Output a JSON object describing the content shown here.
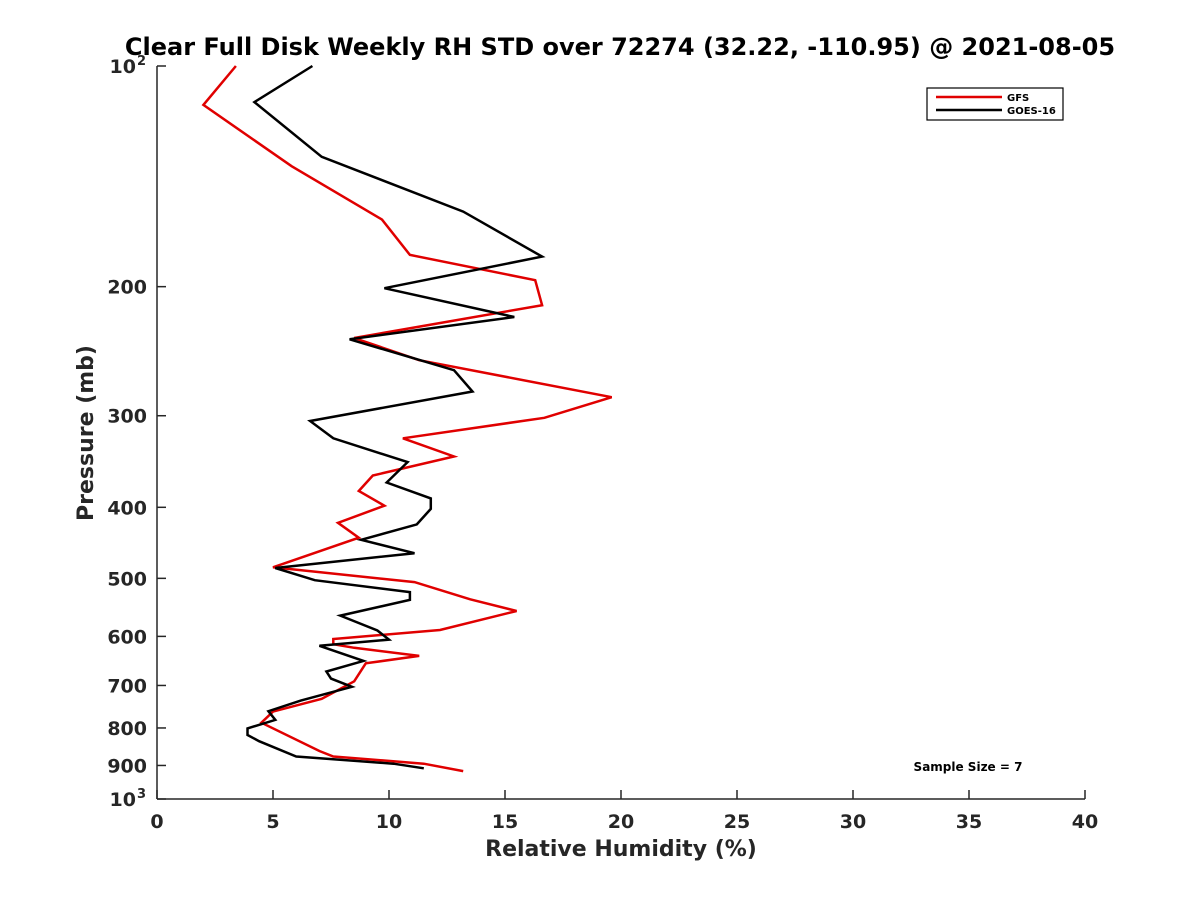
{
  "chart_data": {
    "type": "line",
    "title": "Clear Full Disk Weekly RH STD over 72274 (32.22, -110.95) @ 2021-08-05",
    "xlabel": "Relative Humidity (%)",
    "ylabel": "Pressure (mb)",
    "xlim": [
      0,
      40
    ],
    "ylim": [
      100,
      1000
    ],
    "yscale": "log",
    "y_reversed": true,
    "grid": false,
    "legend_position": "top-right",
    "x_ticks": [
      "0",
      "5",
      "10",
      "15",
      "20",
      "25",
      "30",
      "35",
      "40"
    ],
    "y_ticks": [
      {
        "value": 200,
        "label": "200"
      },
      {
        "value": 300,
        "label": "300"
      },
      {
        "value": 400,
        "label": "400"
      },
      {
        "value": 500,
        "label": "500"
      },
      {
        "value": 600,
        "label": "600"
      },
      {
        "value": 700,
        "label": "700"
      },
      {
        "value": 800,
        "label": "800"
      },
      {
        "value": 900,
        "label": "900"
      }
    ],
    "y_exp_ticks": [
      {
        "value": 100,
        "base": "10",
        "exp": "2"
      },
      {
        "value": 1000,
        "base": "10",
        "exp": "3"
      }
    ],
    "annotation": "Sample Size = 7",
    "series": [
      {
        "name": "GFS",
        "color": "#e00000",
        "points": [
          [
            3.4,
            100
          ],
          [
            2.0,
            113
          ],
          [
            5.8,
            137
          ],
          [
            9.7,
            162
          ],
          [
            10.9,
            181
          ],
          [
            16.3,
            196
          ],
          [
            16.6,
            212
          ],
          [
            8.5,
            235
          ],
          [
            11.3,
            252
          ],
          [
            19.6,
            283
          ],
          [
            16.7,
            302
          ],
          [
            10.6,
            322
          ],
          [
            12.8,
            341
          ],
          [
            9.3,
            362
          ],
          [
            8.7,
            380
          ],
          [
            9.8,
            398
          ],
          [
            7.8,
            420
          ],
          [
            8.7,
            440
          ],
          [
            5.0,
            483
          ],
          [
            11.1,
            506
          ],
          [
            13.5,
            534
          ],
          [
            15.5,
            554
          ],
          [
            12.2,
            588
          ],
          [
            7.6,
            605
          ],
          [
            7.6,
            615
          ],
          [
            8.5,
            622
          ],
          [
            11.3,
            638
          ],
          [
            9.0,
            653
          ],
          [
            8.5,
            691
          ],
          [
            7.1,
            730
          ],
          [
            5.0,
            760
          ],
          [
            4.5,
            787
          ],
          [
            7.0,
            860
          ],
          [
            7.6,
            875
          ],
          [
            11.5,
            895
          ],
          [
            13.2,
            916
          ]
        ]
      },
      {
        "name": "GOES-16",
        "color": "#000000",
        "points": [
          [
            6.7,
            100
          ],
          [
            4.2,
            112
          ],
          [
            7.1,
            133
          ],
          [
            13.2,
            158
          ],
          [
            16.6,
            182
          ],
          [
            9.8,
            201
          ],
          [
            15.4,
            220
          ],
          [
            8.3,
            236
          ],
          [
            12.8,
            260
          ],
          [
            13.6,
            278
          ],
          [
            6.6,
            305
          ],
          [
            7.6,
            322
          ],
          [
            10.8,
            347
          ],
          [
            9.9,
            370
          ],
          [
            11.8,
            389
          ],
          [
            11.8,
            402
          ],
          [
            11.2,
            422
          ],
          [
            8.8,
            443
          ],
          [
            11.1,
            462
          ],
          [
            5.1,
            484
          ],
          [
            6.8,
            503
          ],
          [
            10.9,
            522
          ],
          [
            10.9,
            535
          ],
          [
            7.9,
            562
          ],
          [
            9.5,
            589
          ],
          [
            10.0,
            606
          ],
          [
            7.0,
            618
          ],
          [
            8.9,
            648
          ],
          [
            7.3,
            670
          ],
          [
            7.5,
            685
          ],
          [
            8.4,
            703
          ],
          [
            6.2,
            734
          ],
          [
            4.8,
            759
          ],
          [
            5.1,
            780
          ],
          [
            3.9,
            801
          ],
          [
            3.9,
            818
          ],
          [
            4.4,
            834
          ],
          [
            6.0,
            875
          ],
          [
            10.2,
            895
          ],
          [
            11.5,
            908
          ]
        ]
      }
    ]
  }
}
